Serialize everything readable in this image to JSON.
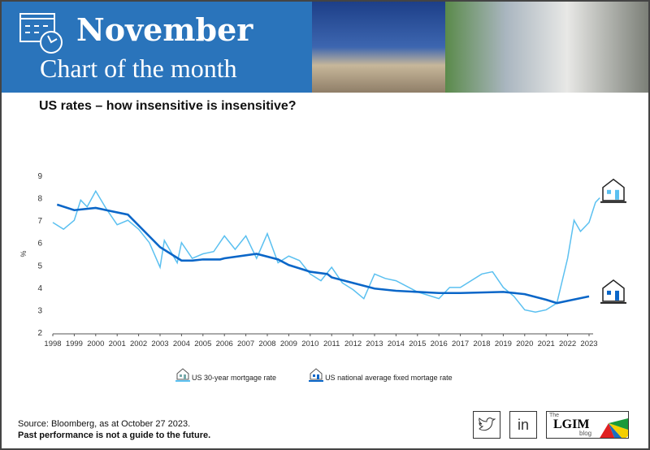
{
  "header": {
    "month": "November",
    "series_title": "Chart of the month"
  },
  "subtitle": "US rates – how insensitive is insensitive?",
  "chart_data": {
    "type": "line",
    "title": "US rates – how insensitive is insensitive?",
    "ylabel": "%",
    "xlabel": "",
    "ylim": [
      2,
      9
    ],
    "xlim": [
      1998,
      2023.6
    ],
    "yticks": [
      "2",
      "3",
      "4",
      "5",
      "6",
      "7",
      "8",
      "9"
    ],
    "xticks": [
      "1998",
      "1999",
      "2000",
      "2001",
      "2002",
      "2003",
      "2004",
      "2005",
      "2006",
      "2007",
      "2008",
      "2009",
      "2010",
      "2011",
      "2012",
      "2013",
      "2014",
      "2015",
      "2016",
      "2017",
      "2018",
      "2019",
      "2020",
      "2021",
      "2022",
      "2023"
    ],
    "legend_position": "bottom",
    "series": [
      {
        "name": "US 30-year mortgage rate",
        "color": "#5bc0f0",
        "x": [
          1998,
          1998.5,
          1999,
          1999.3,
          1999.6,
          2000,
          2000.5,
          2001,
          2001.5,
          2002,
          2002.5,
          2003,
          2003.2,
          2003.8,
          2004,
          2004.5,
          2005,
          2005.5,
          2006,
          2006.5,
          2007,
          2007.5,
          2008,
          2008.5,
          2009,
          2009.5,
          2010,
          2010.5,
          2011,
          2011.5,
          2012,
          2012.5,
          2013,
          2013.5,
          2014,
          2015,
          2016,
          2016.5,
          2017,
          2018,
          2018.5,
          2019,
          2019.5,
          2020,
          2020.5,
          2021,
          2021.5,
          2022,
          2022.3,
          2022.6,
          2023,
          2023.3,
          2023.5
        ],
        "y": [
          6.9,
          6.6,
          7.0,
          7.9,
          7.6,
          8.3,
          7.5,
          6.8,
          7.0,
          6.6,
          6.0,
          4.9,
          6.1,
          5.1,
          6.0,
          5.3,
          5.5,
          5.6,
          6.3,
          5.7,
          6.3,
          5.3,
          6.4,
          5.1,
          5.4,
          5.2,
          4.6,
          4.3,
          4.9,
          4.2,
          3.9,
          3.5,
          4.6,
          4.4,
          4.3,
          3.8,
          3.5,
          4.0,
          4.0,
          4.6,
          4.7,
          4.0,
          3.6,
          3.0,
          2.9,
          3.0,
          3.3,
          5.3,
          7.0,
          6.5,
          6.9,
          7.8,
          8.0
        ]
      },
      {
        "name": "US national average fixed mortage rate",
        "color": "#0a66c8",
        "x": [
          1998.2,
          1999,
          2000,
          2001.5,
          2003,
          2004,
          2004.5,
          2005,
          2005.8,
          2006,
          2007.5,
          2008.5,
          2009,
          2009.5,
          2010,
          2010.8,
          2011,
          2012,
          2013,
          2014,
          2016,
          2017,
          2019,
          2020,
          2021,
          2021.5,
          2022,
          2023
        ],
        "y": [
          7.7,
          7.45,
          7.55,
          7.25,
          5.8,
          5.2,
          5.2,
          5.25,
          5.25,
          5.3,
          5.5,
          5.25,
          5.0,
          4.85,
          4.7,
          4.6,
          4.45,
          4.2,
          3.95,
          3.85,
          3.75,
          3.75,
          3.8,
          3.7,
          3.45,
          3.3,
          3.4,
          3.6
        ]
      }
    ]
  },
  "footer": {
    "source": "Source: Bloomberg, as at October 27 2023.",
    "disclaimer": "Past performance is not a guide to the future.",
    "blog_the": "The",
    "blog_name": "LGIM",
    "blog_word": "blog",
    "linkedin": "in"
  }
}
